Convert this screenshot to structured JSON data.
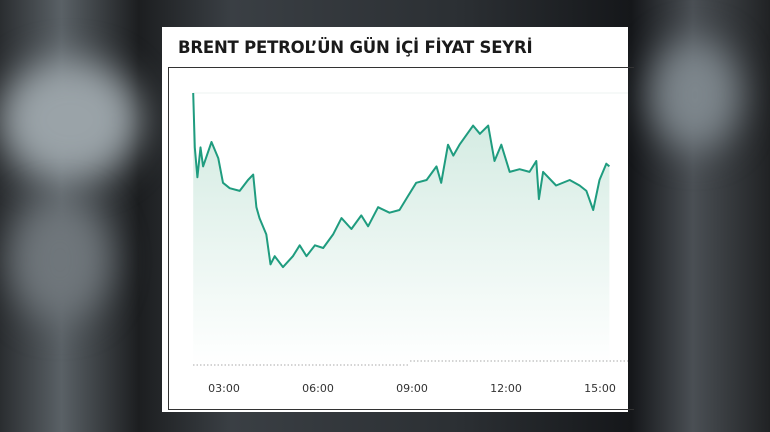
{
  "chart_data": {
    "type": "area",
    "title": "BRENT PETROL’ÜN GÜN İÇİ FİYAT SEYRİ",
    "xlabel": "",
    "ylabel": "",
    "x_tick_labels": [
      "03:00",
      "06:00",
      "09:00",
      "12:00",
      "15:00"
    ],
    "y_scale_note": "relative level (no y-axis printed), 0 = dotted baseline, 100 = top gridline",
    "ylim": [
      0,
      100
    ],
    "grid": false,
    "colors": {
      "line": "#1f9c7f",
      "fill_top": "#cfe9df",
      "fill_bottom": "#ffffff"
    },
    "series": [
      {
        "x": [
          "02:01",
          "02:04",
          "02:09",
          "02:15",
          "02:20",
          "02:36",
          "02:49",
          "02:58",
          "03:11",
          "03:30",
          "03:46",
          "03:56",
          "04:02",
          "04:08",
          "04:21",
          "04:29",
          "04:37",
          "04:53",
          "05:12",
          "05:25",
          "05:38",
          "05:54",
          "06:10",
          "06:29",
          "06:45",
          "07:04",
          "07:23",
          "07:36",
          "07:55",
          "08:17",
          "08:36",
          "08:52",
          "09:08",
          "09:28",
          "09:47",
          "09:56",
          "10:09",
          "10:19",
          "10:31",
          "10:57",
          "11:10",
          "11:26",
          "11:38",
          "11:51",
          "12:07",
          "12:26",
          "12:45",
          "12:58",
          "13:03",
          "13:11",
          "13:36",
          "14:02",
          "14:21",
          "14:34",
          "14:47",
          "14:59",
          "15:12",
          "15:18"
        ],
        "values": [
          100,
          80,
          69,
          80,
          73,
          82,
          76,
          67,
          65,
          64,
          68,
          70,
          58,
          54,
          48,
          37,
          40,
          36,
          40,
          44,
          40,
          44,
          43,
          48,
          54,
          50,
          55,
          51,
          58,
          56,
          57,
          62,
          67,
          68,
          73,
          67,
          81,
          77,
          81,
          88,
          85,
          88,
          75,
          81,
          71,
          72,
          71,
          75,
          61,
          71,
          66,
          68,
          66,
          64,
          57,
          68,
          74,
          73
        ]
      }
    ]
  }
}
